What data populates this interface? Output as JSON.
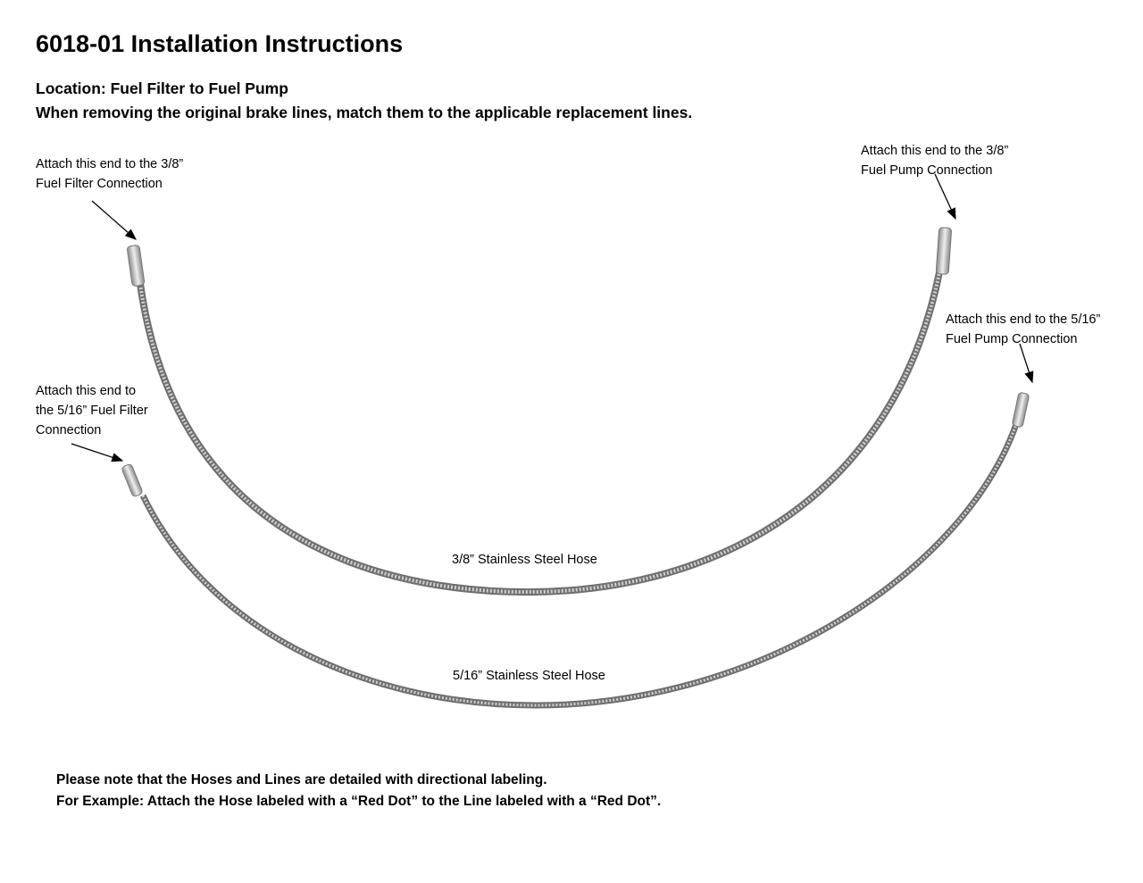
{
  "title": "6018-01 Installation Instructions",
  "location": "Location: Fuel Filter to Fuel Pump",
  "instruction": "When removing the original brake lines, match them to the applicable replacement lines.",
  "labels": {
    "filter_38": [
      "Attach this end to the 3/8”",
      "Fuel Filter Connection"
    ],
    "pump_38": [
      "Attach this end to the 3/8”",
      "Fuel Pump Connection"
    ],
    "pump_516": [
      "Attach this end to the 5/16”",
      "Fuel Pump Connection"
    ],
    "filter_516": [
      "Attach this end to",
      "the 5/16” Fuel Filter",
      "Connection"
    ]
  },
  "hoses": {
    "hose_38": "3/8” Stainless Steel Hose",
    "hose_516": "5/16” Stainless Steel Hose"
  },
  "notes": [
    "Please note that the Hoses and Lines are detailed with directional labeling.",
    "For Example: Attach the Hose labeled with a “Red Dot” to the Line labeled with a “Red Dot”."
  ]
}
